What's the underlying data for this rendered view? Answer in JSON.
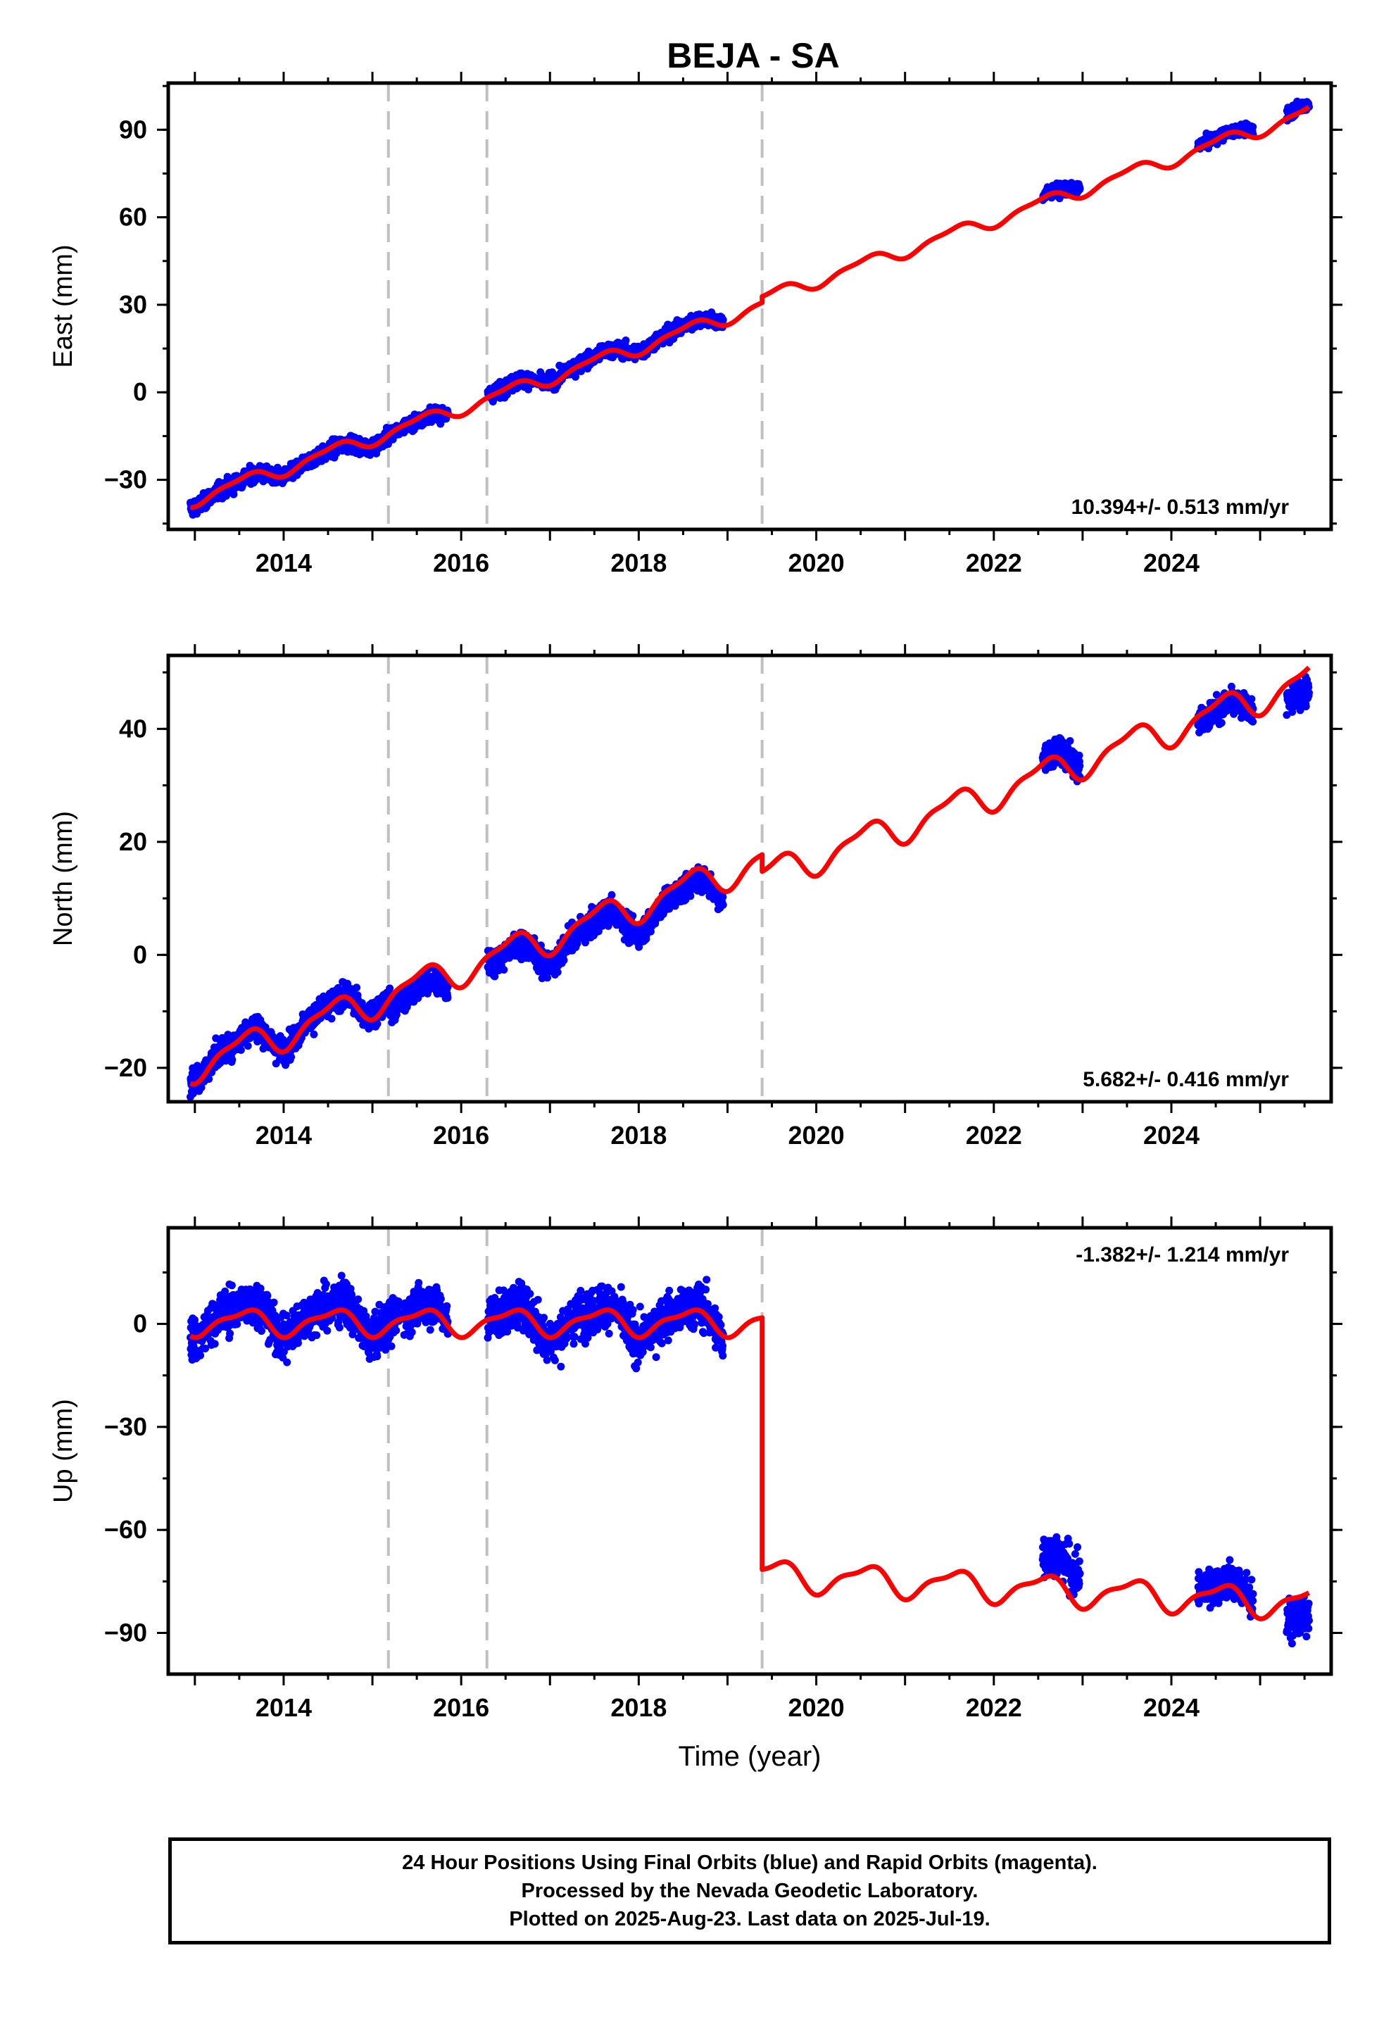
{
  "title": "BEJA - SA",
  "colors": {
    "data": "#0000ff",
    "model": "#ff0000",
    "breaks": "#c0c0c0",
    "frame": "#000000"
  },
  "break_years": [
    2015.18,
    2016.29,
    2019.39
  ],
  "chart_data": [
    {
      "type": "scatter",
      "id": "east",
      "ylabel": "East (mm)",
      "xlim": [
        2012.7,
        2025.8
      ],
      "ylim": [
        -47,
        106
      ],
      "yticks": [
        -30,
        0,
        30,
        60,
        90
      ],
      "xticks": [
        2014,
        2016,
        2018,
        2020,
        2022,
        2024
      ],
      "rate_label": "10.394+/- 0.513 mm/yr",
      "grid": false,
      "data_segments": [
        {
          "start": 2012.95,
          "end": 2015.3,
          "x0": 2012.95,
          "y0": -37.5,
          "rate": 10.39,
          "noise": 2.3,
          "amp": 1.8
        },
        {
          "start": 2015.35,
          "end": 2015.85,
          "x0": 2015.35,
          "y0": -12.5,
          "rate": 10.39,
          "noise": 2.0,
          "amp": 1.8
        },
        {
          "start": 2016.3,
          "end": 2018.95,
          "x0": 2016.3,
          "y0": -1.5,
          "rate": 10.39,
          "noise": 2.2,
          "amp": 1.8
        },
        {
          "start": 2022.55,
          "end": 2022.97,
          "x0": 2022.55,
          "y0": 66.5,
          "rate": 10.39,
          "noise": 1.8,
          "amp": 1.0
        },
        {
          "start": 2024.3,
          "end": 2024.92,
          "x0": 2024.3,
          "y0": 84.5,
          "rate": 10.39,
          "noise": 1.6,
          "amp": 1.0
        },
        {
          "start": 2025.3,
          "end": 2025.55,
          "x0": 2025.3,
          "y0": 95.5,
          "rate": 10.39,
          "noise": 2.0,
          "amp": 1.0
        }
      ],
      "model_segments": [
        {
          "start": 2012.95,
          "end": 2019.39,
          "x0": 2012.95,
          "y0": -37.0,
          "rate": 10.39,
          "amp": 2.2
        },
        {
          "start": 2019.39,
          "end": 2025.55,
          "x0": 2019.39,
          "y0": 32.0,
          "rate": 10.39,
          "amp": 2.2
        }
      ]
    },
    {
      "type": "scatter",
      "id": "north",
      "ylabel": "North (mm)",
      "xlim": [
        2012.7,
        2025.8
      ],
      "ylim": [
        -26,
        53
      ],
      "yticks": [
        -20,
        0,
        20,
        40
      ],
      "xticks": [
        2014,
        2016,
        2018,
        2020,
        2022,
        2024
      ],
      "rate_label": "5.682+/- 0.416 mm/yr",
      "grid": false,
      "data_segments": [
        {
          "start": 2012.95,
          "end": 2015.2,
          "x0": 2012.95,
          "y0": -19.5,
          "rate": 5.68,
          "noise": 2.0,
          "amp": 2.5
        },
        {
          "start": 2015.2,
          "end": 2015.85,
          "x0": 2015.2,
          "y0": -9.5,
          "rate": 5.68,
          "noise": 1.8,
          "amp": 2.5
        },
        {
          "start": 2016.3,
          "end": 2018.95,
          "x0": 2016.3,
          "y0": -2.5,
          "rate": 5.68,
          "noise": 2.0,
          "amp": 2.5
        },
        {
          "start": 2022.55,
          "end": 2022.97,
          "x0": 2022.55,
          "y0": 33.5,
          "rate": 5.68,
          "noise": 2.2,
          "amp": 1.5
        },
        {
          "start": 2024.3,
          "end": 2024.92,
          "x0": 2024.3,
          "y0": 41.0,
          "rate": 5.68,
          "noise": 2.0,
          "amp": 1.5
        },
        {
          "start": 2025.3,
          "end": 2025.55,
          "x0": 2025.3,
          "y0": 44.5,
          "rate": 5.68,
          "noise": 2.2,
          "amp": 1.5
        }
      ],
      "model_segments": [
        {
          "start": 2012.95,
          "end": 2019.39,
          "x0": 2012.95,
          "y0": -19.8,
          "rate": 5.68,
          "amp": 2.6
        },
        {
          "start": 2019.39,
          "end": 2025.55,
          "x0": 2019.39,
          "y0": 13.8,
          "rate": 5.68,
          "amp": 2.6
        }
      ]
    },
    {
      "type": "scatter",
      "id": "up",
      "ylabel": "Up (mm)",
      "xlabel": "Time (year)",
      "xlim": [
        2012.7,
        2025.8
      ],
      "ylim": [
        -102,
        28
      ],
      "yticks": [
        -90,
        -60,
        -30,
        0
      ],
      "xticks": [
        2014,
        2016,
        2018,
        2020,
        2022,
        2024
      ],
      "rate_label": "-1.382+/- 1.214 mm/yr",
      "grid": false,
      "data_segments": [
        {
          "start": 2012.95,
          "end": 2015.3,
          "x0": 2012.95,
          "y0": 2.0,
          "rate": 0.0,
          "noise": 5.5,
          "amp": 4.5
        },
        {
          "start": 2015.35,
          "end": 2015.85,
          "x0": 2015.35,
          "y0": 2.0,
          "rate": 0.0,
          "noise": 5.0,
          "amp": 4.0
        },
        {
          "start": 2016.3,
          "end": 2018.95,
          "x0": 2016.3,
          "y0": 1.0,
          "rate": 0.0,
          "noise": 5.5,
          "amp": 4.5
        },
        {
          "start": 2022.55,
          "end": 2022.97,
          "x0": 2022.55,
          "y0": -70.0,
          "rate": 0.0,
          "noise": 5.5,
          "amp": 3.0
        },
        {
          "start": 2024.3,
          "end": 2024.92,
          "x0": 2024.3,
          "y0": -78.0,
          "rate": 0.0,
          "noise": 5.0,
          "amp": 3.0
        },
        {
          "start": 2025.3,
          "end": 2025.55,
          "x0": 2025.3,
          "y0": -87.0,
          "rate": 0.0,
          "noise": 4.5,
          "amp": 2.0
        }
      ],
      "model_segments": [
        {
          "start": 2012.95,
          "end": 2019.39,
          "x0": 2012.95,
          "y0": 0.5,
          "rate": 0.0,
          "amp": 3.5
        },
        {
          "start": 2019.39,
          "end": 2025.55,
          "x0": 2019.39,
          "y0": -73.0,
          "rate": -1.38,
          "amp": 4.0
        }
      ]
    }
  ],
  "footer": {
    "line1": "24 Hour Positions Using Final Orbits (blue) and Rapid Orbits (magenta).",
    "line2": "Processed by the Nevada Geodetic Laboratory.",
    "line3": "Plotted on 2025-Aug-23. Last data on 2025-Jul-19."
  }
}
